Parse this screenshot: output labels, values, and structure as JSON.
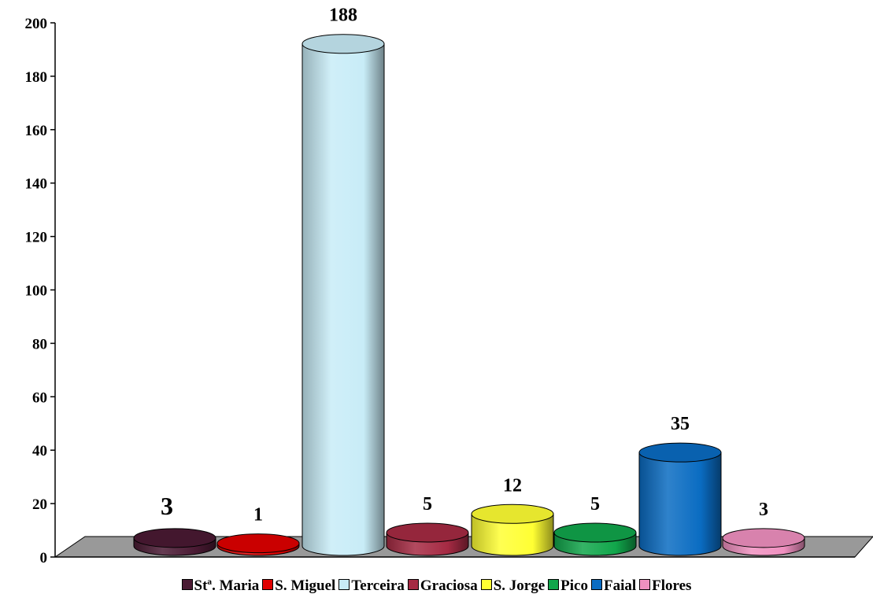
{
  "chart_data": {
    "type": "bar",
    "style": "3d-cylinder",
    "categories": [
      "Stª. Maria",
      "S. Miguel",
      "Terceira",
      "Graciosa",
      "S. Jorge",
      "Pico",
      "Faial",
      "Flores"
    ],
    "values": [
      3,
      1,
      188,
      5,
      12,
      5,
      35,
      3
    ],
    "data_labels": [
      "3",
      "1",
      "188",
      "5",
      "12",
      "5",
      "35",
      "3"
    ],
    "colors": [
      "#4a1a33",
      "#e00000",
      "#c8ecf7",
      "#a52a43",
      "#ffff33",
      "#11a64b",
      "#0a6cc2",
      "#f090c0"
    ],
    "ylim": [
      0,
      200
    ],
    "yticks": [
      "0",
      "20",
      "40",
      "60",
      "80",
      "100",
      "120",
      "140",
      "160",
      "180",
      "200"
    ],
    "title": "",
    "xlabel": "",
    "ylabel": "",
    "grid": false,
    "legend_position": "bottom"
  }
}
